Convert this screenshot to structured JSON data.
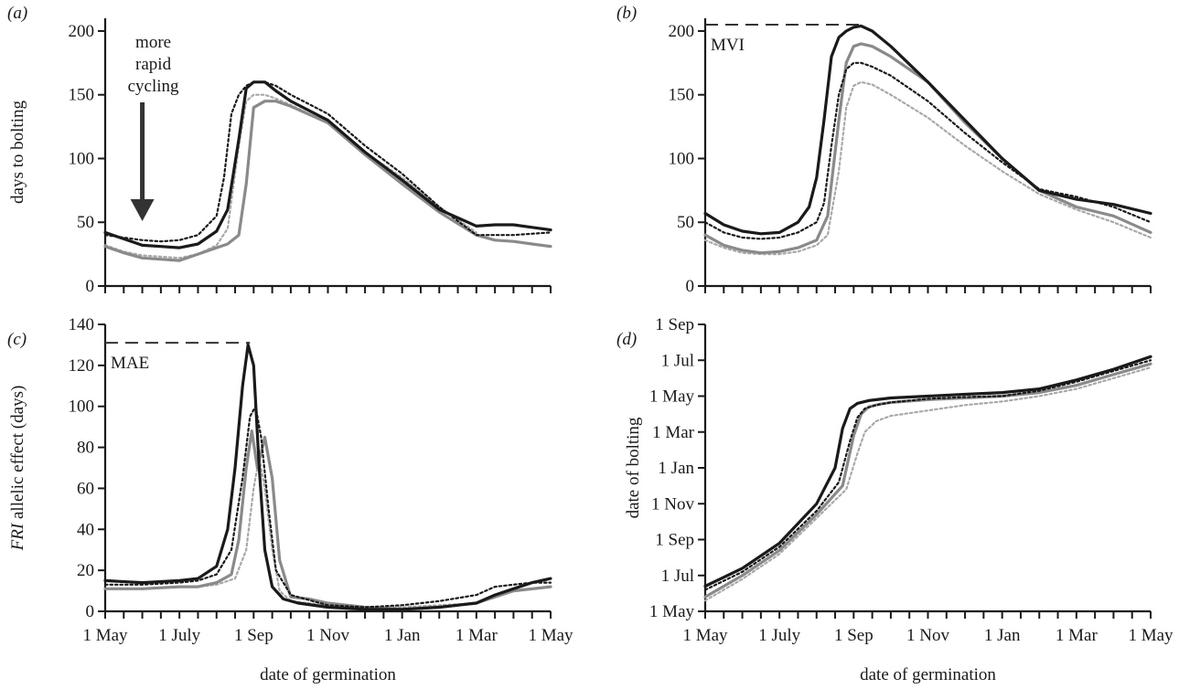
{
  "figure": {
    "xlabel": "date of germination",
    "x_ticks": [
      "1 May",
      "1 July",
      "1 Sep",
      "1 Nov",
      "1 Jan",
      "1 Mar",
      "1 May"
    ]
  },
  "styles": {
    "series_colors": [
      "#1a1a1a",
      "#1a1a1a",
      "#8a8a8a",
      "#a8a8a8"
    ],
    "axis_color": "#1a1a1a"
  },
  "chart_data": [
    {
      "id": "a",
      "panel_label": "(a)",
      "type": "line",
      "ylabel": "days to bolting",
      "ylabel_italic_prefix": "",
      "xlabel": "",
      "x_ticks_shown": false,
      "xlim": [
        0,
        12
      ],
      "ylim": [
        0,
        210
      ],
      "y_ticks": [
        0,
        50,
        100,
        150,
        200
      ],
      "y_tick_labels": [
        "0",
        "50",
        "100",
        "150",
        "200"
      ],
      "annotation": {
        "text_lines": [
          "more",
          "rapid",
          "cycling"
        ],
        "arrow_x": 1
      },
      "series": [
        {
          "style": "solid-dark",
          "x": [
            0,
            0.5,
            1,
            1.5,
            2,
            2.5,
            3,
            3.3,
            3.6,
            3.8,
            4,
            4.3,
            4.6,
            5,
            6,
            7,
            8,
            9,
            10,
            10.5,
            11,
            11.5,
            12
          ],
          "y": [
            42,
            37,
            32,
            31,
            30,
            33,
            43,
            60,
            115,
            155,
            160,
            160,
            153,
            145,
            130,
            105,
            83,
            60,
            47,
            48,
            48,
            46,
            44
          ]
        },
        {
          "style": "dotted-dark",
          "x": [
            0,
            0.5,
            1,
            1.5,
            2,
            2.5,
            3,
            3.2,
            3.4,
            3.6,
            3.8,
            4,
            4.3,
            4.6,
            5,
            6,
            7,
            8,
            9,
            10,
            11,
            12
          ],
          "y": [
            40,
            38,
            36,
            35,
            36,
            40,
            55,
            85,
            135,
            150,
            157,
            160,
            160,
            157,
            150,
            135,
            110,
            88,
            62,
            40,
            40,
            42
          ]
        },
        {
          "style": "solid-gray",
          "x": [
            0,
            0.5,
            1,
            1.5,
            2,
            2.5,
            3,
            3.3,
            3.6,
            3.8,
            4,
            4.3,
            4.6,
            5,
            6,
            7,
            8,
            9,
            10,
            10.5,
            11,
            11.5,
            12
          ],
          "y": [
            31,
            26,
            22,
            21,
            20,
            25,
            30,
            33,
            40,
            80,
            140,
            145,
            145,
            141,
            128,
            103,
            80,
            58,
            40,
            36,
            35,
            33,
            31
          ]
        },
        {
          "style": "dotted-gray",
          "x": [
            0,
            0.5,
            1,
            1.5,
            2,
            2.5,
            3,
            3.3,
            3.6,
            3.8,
            4,
            4.3,
            4.6,
            5,
            6,
            7,
            8,
            9,
            10
          ],
          "y": [
            32,
            27,
            24,
            23,
            22,
            25,
            32,
            45,
            110,
            145,
            150,
            150,
            147,
            142,
            128,
            105,
            85,
            62,
            42
          ]
        }
      ]
    },
    {
      "id": "b",
      "panel_label": "(b)",
      "type": "line",
      "ylabel": "",
      "ylabel_italic_prefix": "",
      "xlabel": "",
      "x_ticks_shown": false,
      "xlim": [
        0,
        12
      ],
      "ylim": [
        0,
        210
      ],
      "y_ticks": [
        0,
        50,
        100,
        150,
        200
      ],
      "y_tick_labels": [
        "0",
        "50",
        "100",
        "150",
        "200"
      ],
      "reference_line": {
        "label": "MVI",
        "y": 205,
        "x_end": 4.2
      },
      "series": [
        {
          "style": "solid-dark",
          "x": [
            0,
            0.5,
            1,
            1.5,
            2,
            2.5,
            2.8,
            3,
            3.2,
            3.4,
            3.6,
            3.8,
            4,
            4.2,
            4.5,
            5,
            6,
            7,
            8,
            9,
            10,
            11,
            12
          ],
          "y": [
            57,
            48,
            43,
            41,
            42,
            50,
            62,
            85,
            130,
            180,
            195,
            200,
            203,
            204,
            200,
            188,
            160,
            130,
            100,
            75,
            68,
            64,
            57
          ]
        },
        {
          "style": "dotted-dark",
          "x": [
            0,
            0.5,
            1,
            1.5,
            2,
            2.5,
            3,
            3.2,
            3.4,
            3.6,
            3.8,
            4,
            4.2,
            4.5,
            5,
            6,
            7,
            8,
            9,
            10,
            11,
            12
          ],
          "y": [
            50,
            42,
            38,
            37,
            38,
            42,
            50,
            65,
            110,
            150,
            170,
            175,
            175,
            172,
            165,
            145,
            120,
            97,
            76,
            70,
            62,
            50
          ]
        },
        {
          "style": "solid-gray",
          "x": [
            0,
            0.5,
            1,
            1.5,
            2,
            2.5,
            3,
            3.3,
            3.6,
            3.8,
            4,
            4.2,
            4.5,
            5,
            6,
            7,
            8,
            9,
            10,
            11,
            12
          ],
          "y": [
            40,
            32,
            28,
            26,
            27,
            30,
            36,
            55,
            130,
            175,
            188,
            190,
            188,
            180,
            160,
            128,
            100,
            75,
            62,
            55,
            42
          ]
        },
        {
          "style": "dotted-gray",
          "x": [
            0,
            0.5,
            1,
            1.5,
            2,
            2.5,
            3,
            3.3,
            3.6,
            3.8,
            4,
            4.2,
            4.5,
            5,
            6,
            7,
            8,
            9,
            10,
            11,
            12
          ],
          "y": [
            36,
            30,
            26,
            25,
            25,
            27,
            32,
            40,
            90,
            140,
            157,
            160,
            158,
            150,
            132,
            110,
            90,
            72,
            60,
            50,
            38
          ]
        }
      ]
    },
    {
      "id": "c",
      "panel_label": "(c)",
      "type": "line",
      "ylabel": " allelic effect (days)",
      "ylabel_italic_prefix": "FRI",
      "xlabel": "date of germination",
      "x_ticks_shown": true,
      "xlim": [
        0,
        12
      ],
      "ylim": [
        0,
        140
      ],
      "y_ticks": [
        0,
        20,
        40,
        60,
        80,
        100,
        120,
        140
      ],
      "y_tick_labels": [
        "0",
        "20",
        "40",
        "60",
        "80",
        "100",
        "120",
        "140"
      ],
      "reference_line": {
        "label": "MAE",
        "y": 131,
        "x_end": 3.9
      },
      "series": [
        {
          "style": "solid-dark",
          "x": [
            0,
            1,
            2,
            2.5,
            3,
            3.3,
            3.5,
            3.7,
            3.85,
            4,
            4.15,
            4.3,
            4.5,
            4.8,
            5.2,
            6,
            7,
            8,
            9,
            10,
            10.5,
            11,
            11.5,
            12
          ],
          "y": [
            15,
            14,
            15,
            16,
            22,
            40,
            70,
            110,
            130,
            120,
            70,
            30,
            12,
            6,
            4,
            2,
            1,
            1,
            2,
            4,
            8,
            11,
            14,
            16
          ]
        },
        {
          "style": "dotted-dark",
          "x": [
            0,
            1,
            2,
            2.5,
            3,
            3.4,
            3.7,
            3.9,
            4.05,
            4.2,
            4.4,
            4.6,
            5,
            6,
            7,
            8,
            9,
            10,
            10.5,
            11,
            11.5,
            12
          ],
          "y": [
            13,
            13,
            14,
            15,
            18,
            30,
            65,
            95,
            100,
            85,
            50,
            20,
            8,
            3,
            2,
            3,
            5,
            8,
            12,
            13,
            14,
            14
          ]
        },
        {
          "style": "solid-gray",
          "x": [
            0,
            1,
            2,
            2.5,
            3,
            3.4,
            3.6,
            3.8,
            3.95,
            4.1,
            4.3,
            4.5,
            4.7,
            5,
            5.5,
            6,
            7,
            8,
            9,
            10,
            11,
            12
          ],
          "y": [
            11,
            11,
            12,
            12,
            14,
            18,
            35,
            70,
            88,
            70,
            85,
            65,
            25,
            7,
            6,
            4,
            2,
            1,
            2,
            4,
            10,
            12
          ]
        },
        {
          "style": "dotted-gray",
          "x": [
            0,
            1,
            2,
            2.5,
            3,
            3.5,
            3.8,
            4,
            4.15,
            4.3,
            4.5,
            4.7,
            5,
            6,
            7,
            8,
            9,
            10,
            11,
            12
          ],
          "y": [
            11,
            11,
            12,
            12,
            13,
            16,
            30,
            60,
            75,
            60,
            30,
            10,
            5,
            3,
            2,
            2,
            3,
            4,
            10,
            12
          ]
        }
      ]
    },
    {
      "id": "d",
      "panel_label": "(d)",
      "type": "line",
      "ylabel": "date of bolting",
      "ylabel_italic_prefix": "",
      "xlabel": "date of germination",
      "x_ticks_shown": true,
      "xlim": [
        0,
        12
      ],
      "ylim": [
        0,
        16
      ],
      "y_ticks": [
        0,
        2,
        4,
        6,
        8,
        10,
        12,
        14,
        16
      ],
      "y_tick_labels": [
        "1 May",
        "1 Jul",
        "1 Sep",
        "1 Nov",
        "1 Jan",
        "1 Mar",
        "1 May",
        "1 Jul",
        "1 Sep"
      ],
      "series": [
        {
          "style": "solid-dark",
          "x": [
            0,
            1,
            2,
            3,
            3.5,
            3.7,
            3.9,
            4.1,
            4.4,
            5,
            6,
            7,
            8,
            9,
            10,
            11,
            12
          ],
          "y": [
            1.4,
            2.4,
            3.8,
            6.0,
            8.0,
            10.2,
            11.3,
            11.6,
            11.75,
            11.9,
            12.0,
            12.1,
            12.2,
            12.4,
            12.9,
            13.5,
            14.2
          ]
        },
        {
          "style": "dotted-dark",
          "x": [
            0,
            1,
            2,
            3,
            3.6,
            3.9,
            4.1,
            4.3,
            4.6,
            5,
            6,
            7,
            8,
            9,
            10,
            11,
            12
          ],
          "y": [
            1.2,
            2.2,
            3.6,
            5.6,
            7.2,
            9.5,
            10.8,
            11.3,
            11.5,
            11.65,
            11.85,
            11.95,
            12.0,
            12.3,
            12.8,
            13.4,
            14.0
          ]
        },
        {
          "style": "solid-gray",
          "x": [
            0,
            1,
            2,
            3,
            3.7,
            4,
            4.2,
            4.4,
            4.7,
            5,
            6,
            7,
            8,
            9,
            10,
            11,
            12
          ],
          "y": [
            0.8,
            2.0,
            3.4,
            5.4,
            7.0,
            9.8,
            11.0,
            11.4,
            11.55,
            11.65,
            11.8,
            11.9,
            12.0,
            12.2,
            12.6,
            13.2,
            13.8
          ]
        },
        {
          "style": "dotted-gray",
          "x": [
            0,
            1,
            2,
            3,
            3.8,
            4.1,
            4.3,
            4.6,
            5,
            6,
            7,
            8,
            9,
            10,
            11,
            12
          ],
          "y": [
            0.6,
            1.8,
            3.2,
            5.2,
            6.8,
            8.8,
            10.0,
            10.6,
            10.9,
            11.2,
            11.5,
            11.7,
            12.0,
            12.4,
            13.0,
            13.6
          ]
        }
      ]
    }
  ]
}
